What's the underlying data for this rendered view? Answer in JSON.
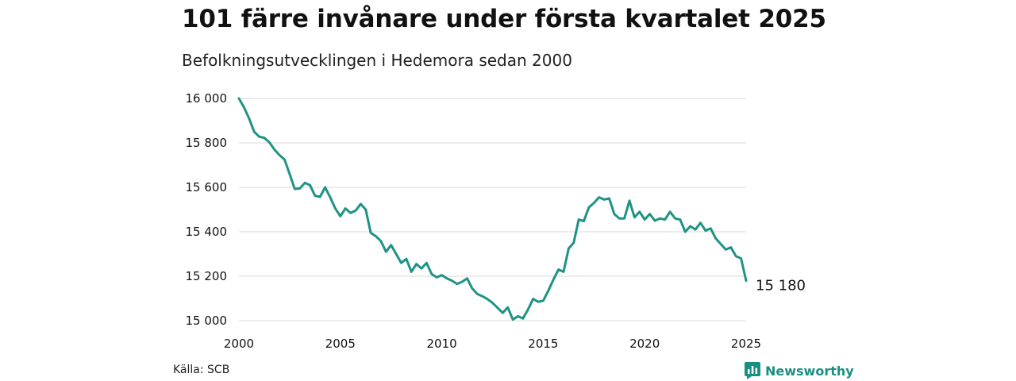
{
  "header": {
    "title": "101 färre invånare under första kvartalet 2025",
    "subtitle": "Befolkningsutvecklingen i Hedemora sedan 2000"
  },
  "footer": {
    "source": "Källa: SCB",
    "brand": "Newsworthy",
    "brand_icon": "chart-logo-icon"
  },
  "colors": {
    "line": "#1f9385",
    "grid": "#d9d9d9",
    "brand": "#1a8f83"
  },
  "chart_data": {
    "type": "line",
    "title": "101 färre invånare under första kvartalet 2025",
    "subtitle": "Befolkningsutvecklingen i Hedemora sedan 2000",
    "xlabel": "",
    "ylabel": "",
    "xlim": [
      2000,
      2025
    ],
    "ylim": [
      15000,
      16000
    ],
    "xticks": [
      2000,
      2005,
      2010,
      2015,
      2020,
      2025
    ],
    "xtick_labels": [
      "2000",
      "2005",
      "2010",
      "2015",
      "2020",
      "2025"
    ],
    "yticks": [
      15000,
      15200,
      15400,
      15600,
      15800,
      16000
    ],
    "ytick_labels": [
      "15 000",
      "15 200",
      "15 400",
      "15 600",
      "15 800",
      "16 000"
    ],
    "grid": "horizontal",
    "end_label": "15 180",
    "series": [
      {
        "x": [
          2000.0,
          2000.25,
          2000.5,
          2000.75,
          2001.0,
          2001.25,
          2001.5,
          2001.75,
          2002.0,
          2002.25,
          2002.5,
          2002.75,
          2003.0,
          2003.25,
          2003.5,
          2003.75,
          2004.0,
          2004.25,
          2004.5,
          2004.75,
          2005.0,
          2005.25,
          2005.5,
          2005.75,
          2006.0,
          2006.25,
          2006.5,
          2006.75,
          2007.0,
          2007.25,
          2007.5,
          2007.75,
          2008.0,
          2008.25,
          2008.5,
          2008.75,
          2009.0,
          2009.25,
          2009.5,
          2009.75,
          2010.0,
          2010.25,
          2010.5,
          2010.75,
          2011.0,
          2011.25,
          2011.5,
          2011.75,
          2012.0,
          2012.25,
          2012.5,
          2012.75,
          2013.0,
          2013.25,
          2013.5,
          2013.75,
          2014.0,
          2014.25,
          2014.5,
          2014.75,
          2015.0,
          2015.25,
          2015.5,
          2015.75,
          2016.0,
          2016.25,
          2016.5,
          2016.75,
          2017.0,
          2017.25,
          2017.5,
          2017.75,
          2018.0,
          2018.25,
          2018.5,
          2018.75,
          2019.0,
          2019.25,
          2019.5,
          2019.75,
          2020.0,
          2020.25,
          2020.5,
          2020.75,
          2021.0,
          2021.25,
          2021.5,
          2021.75,
          2022.0,
          2022.25,
          2022.5,
          2022.75,
          2023.0,
          2023.25,
          2023.5,
          2023.75,
          2024.0,
          2024.25,
          2024.5,
          2024.75,
          2025.0
        ],
        "y": [
          16000,
          15960,
          15910,
          15850,
          15828,
          15823,
          15803,
          15770,
          15745,
          15725,
          15660,
          15593,
          15595,
          15620,
          15610,
          15562,
          15557,
          15600,
          15555,
          15505,
          15470,
          15505,
          15485,
          15495,
          15525,
          15500,
          15395,
          15380,
          15358,
          15310,
          15340,
          15300,
          15260,
          15278,
          15220,
          15255,
          15235,
          15260,
          15210,
          15195,
          15205,
          15190,
          15180,
          15165,
          15175,
          15190,
          15145,
          15120,
          15110,
          15097,
          15080,
          15058,
          15035,
          15060,
          15005,
          15020,
          15010,
          15050,
          15098,
          15085,
          15090,
          15135,
          15185,
          15230,
          15220,
          15325,
          15350,
          15455,
          15448,
          15510,
          15530,
          15555,
          15545,
          15550,
          15480,
          15460,
          15460,
          15540,
          15465,
          15490,
          15455,
          15480,
          15450,
          15460,
          15455,
          15490,
          15460,
          15455,
          15400,
          15425,
          15410,
          15440,
          15405,
          15415,
          15370,
          15345,
          15320,
          15330,
          15290,
          15280,
          15180
        ]
      }
    ]
  }
}
